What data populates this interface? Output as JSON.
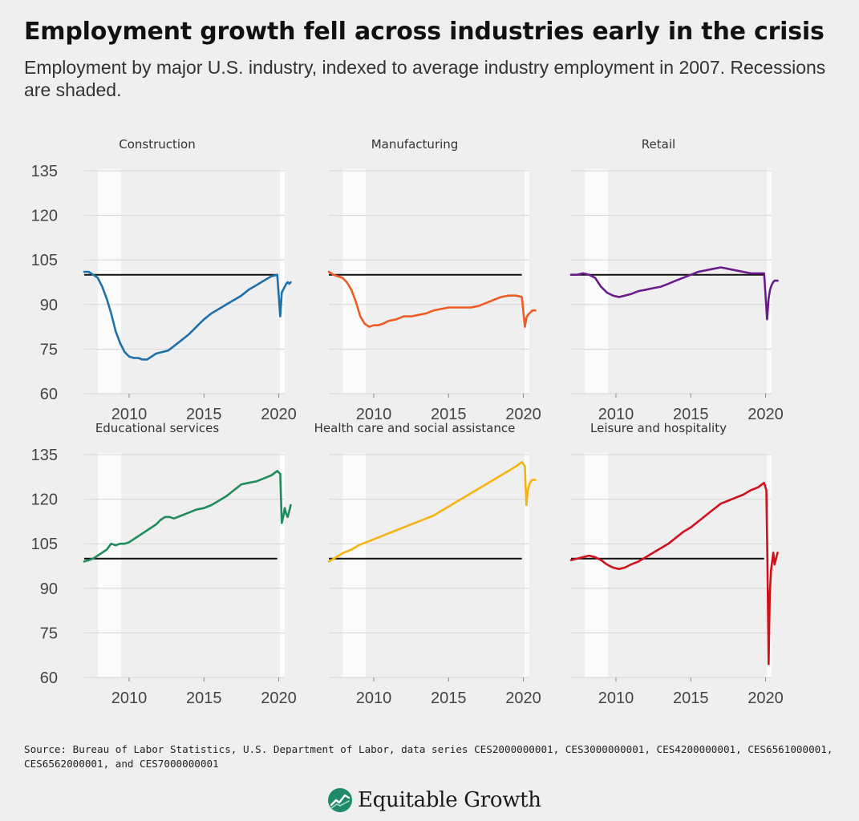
{
  "header": {
    "title": "Employment growth fell across industries early in the crisis",
    "subtitle": "Employment by major U.S. industry, indexed to average industry employment in 2007. Recessions are shaded."
  },
  "footer": {
    "source": "Source: Bureau of Labor Statistics, U.S. Department of Labor, data series CES2000000001, CES3000000001, CES4200000001, CES6561000001, CES6562000001, and CES7000000001",
    "logo_text": "Equitable Growth",
    "logo_icon": "equitable-growth-logo-icon"
  },
  "chart_data": {
    "type": "line",
    "layout": "small-multiples",
    "ylim": [
      60,
      135
    ],
    "y_ticks": [
      60,
      75,
      90,
      105,
      120,
      135
    ],
    "xlim": [
      2007,
      2020.4
    ],
    "x_ticks": [
      2010,
      2015,
      2020
    ],
    "reference_line": 100,
    "recessions": [
      [
        2007.92,
        2009.46
      ],
      [
        2020.08,
        2020.4
      ]
    ],
    "colors": {
      "reference": "#111111",
      "recession": "#fbfbfb",
      "grid": "#d6d6d6"
    },
    "panels": [
      {
        "name": "Construction",
        "color": "#1f6fa8",
        "x": [
          2007.0,
          2007.3,
          2007.6,
          2007.9,
          2008.2,
          2008.5,
          2008.8,
          2009.1,
          2009.4,
          2009.7,
          2010.0,
          2010.3,
          2010.6,
          2010.9,
          2011.2,
          2011.5,
          2011.8,
          2012.2,
          2012.6,
          2013.0,
          2013.5,
          2014.0,
          2014.5,
          2015.0,
          2015.5,
          2016.0,
          2016.5,
          2017.0,
          2017.5,
          2018.0,
          2018.5,
          2019.0,
          2019.5,
          2019.9,
          2020.1,
          2020.2,
          2020.3,
          2020.4,
          2020.5,
          2020.6,
          2020.7,
          2020.8
        ],
        "y": [
          101,
          101,
          100,
          99,
          96,
          92,
          87,
          81,
          77,
          74,
          72.5,
          72,
          72,
          71.5,
          71.5,
          72.5,
          73.5,
          74,
          74.5,
          76,
          78,
          80,
          82.5,
          85,
          87,
          88.5,
          90,
          91.5,
          93,
          95,
          96.5,
          98,
          99.5,
          100,
          86,
          94,
          95,
          96,
          97,
          97.5,
          97,
          97.5
        ]
      },
      {
        "name": "Manufacturing",
        "color": "#f05a23",
        "x": [
          2007.0,
          2007.3,
          2007.6,
          2007.9,
          2008.2,
          2008.5,
          2008.8,
          2009.1,
          2009.4,
          2009.7,
          2010.0,
          2010.3,
          2010.6,
          2011.0,
          2011.5,
          2012.0,
          2012.5,
          2013.0,
          2013.5,
          2014.0,
          2014.5,
          2015.0,
          2015.5,
          2016.0,
          2016.5,
          2017.0,
          2017.5,
          2018.0,
          2018.5,
          2019.0,
          2019.5,
          2019.9,
          2020.1,
          2020.2,
          2020.3,
          2020.4,
          2020.5,
          2020.6,
          2020.7,
          2020.8
        ],
        "y": [
          101,
          100,
          99.5,
          99,
          97.5,
          95,
          91,
          86,
          83.5,
          82.5,
          83,
          83,
          83.5,
          84.5,
          85,
          86,
          86,
          86.5,
          87,
          88,
          88.5,
          89,
          89,
          89,
          89,
          89.5,
          90.5,
          91.5,
          92.5,
          93,
          93,
          92.5,
          82.5,
          85.5,
          86.5,
          87,
          87.5,
          88,
          88,
          88
        ]
      },
      {
        "name": "Retail",
        "color": "#6a1d8a",
        "x": [
          2007.0,
          2007.4,
          2007.8,
          2008.2,
          2008.6,
          2009.0,
          2009.4,
          2009.8,
          2010.2,
          2010.6,
          2011.0,
          2011.5,
          2012.0,
          2012.5,
          2013.0,
          2013.5,
          2014.0,
          2014.5,
          2015.0,
          2015.5,
          2016.0,
          2016.5,
          2017.0,
          2017.5,
          2018.0,
          2018.5,
          2019.0,
          2019.5,
          2019.9,
          2020.1,
          2020.2,
          2020.3,
          2020.4,
          2020.5,
          2020.6,
          2020.7,
          2020.8
        ],
        "y": [
          100,
          100,
          100.5,
          100,
          99,
          96,
          94,
          93,
          92.5,
          93,
          93.5,
          94.5,
          95,
          95.5,
          96,
          97,
          98,
          99,
          100,
          101,
          101.5,
          102,
          102.5,
          102,
          101.5,
          101,
          100.5,
          100.5,
          100.5,
          85,
          92,
          95,
          96.5,
          97.5,
          98,
          98,
          98
        ]
      },
      {
        "name": "Educational services",
        "color": "#1f8a5a",
        "x": [
          2007.0,
          2007.3,
          2007.6,
          2007.9,
          2008.2,
          2008.5,
          2008.8,
          2009.1,
          2009.4,
          2009.7,
          2010.0,
          2010.3,
          2010.6,
          2010.9,
          2011.2,
          2011.5,
          2011.8,
          2012.1,
          2012.4,
          2012.7,
          2013.0,
          2013.5,
          2014.0,
          2014.5,
          2015.0,
          2015.5,
          2016.0,
          2016.5,
          2017.0,
          2017.5,
          2018.0,
          2018.5,
          2019.0,
          2019.5,
          2019.9,
          2020.1,
          2020.2,
          2020.3,
          2020.4,
          2020.5,
          2020.6,
          2020.7,
          2020.8
        ],
        "y": [
          99,
          99.5,
          100,
          101,
          102,
          103,
          105,
          104.5,
          105,
          105,
          105.5,
          106.5,
          107.5,
          108.5,
          109.5,
          110.5,
          111.5,
          113,
          114,
          114,
          113.5,
          114.5,
          115.5,
          116.5,
          117,
          118,
          119.5,
          121,
          123,
          125,
          125.5,
          126,
          127,
          128,
          129.5,
          128.5,
          112,
          114,
          117,
          115,
          114,
          116,
          118
        ]
      },
      {
        "name": "Health care and social assistance",
        "color": "#f5b311",
        "x": [
          2007.0,
          2007.5,
          2008.0,
          2008.5,
          2009.0,
          2009.5,
          2010.0,
          2010.5,
          2011.0,
          2011.5,
          2012.0,
          2012.5,
          2013.0,
          2013.5,
          2014.0,
          2014.5,
          2015.0,
          2015.5,
          2016.0,
          2016.5,
          2017.0,
          2017.5,
          2018.0,
          2018.5,
          2019.0,
          2019.5,
          2019.9,
          2020.1,
          2020.2,
          2020.3,
          2020.4,
          2020.5,
          2020.6,
          2020.7,
          2020.8
        ],
        "y": [
          99,
          100.5,
          102,
          103,
          104.5,
          105.5,
          106.5,
          107.5,
          108.5,
          109.5,
          110.5,
          111.5,
          112.5,
          113.5,
          114.5,
          116,
          117.5,
          119,
          120.5,
          122,
          123.5,
          125,
          126.5,
          128,
          129.5,
          131,
          132.5,
          131,
          118,
          123,
          125,
          126,
          126.5,
          126.5,
          126.5
        ]
      },
      {
        "name": "Leisure and hospitality",
        "color": "#d0111b",
        "x": [
          2007.0,
          2007.4,
          2007.8,
          2008.2,
          2008.6,
          2009.0,
          2009.4,
          2009.8,
          2010.2,
          2010.6,
          2011.0,
          2011.5,
          2012.0,
          2012.5,
          2013.0,
          2013.5,
          2014.0,
          2014.5,
          2015.0,
          2015.5,
          2016.0,
          2016.5,
          2017.0,
          2017.5,
          2018.0,
          2018.5,
          2019.0,
          2019.5,
          2019.9,
          2020.05,
          2020.12,
          2020.2,
          2020.28,
          2020.36,
          2020.44,
          2020.52,
          2020.6,
          2020.7,
          2020.8
        ],
        "y": [
          99.5,
          100,
          100.5,
          101,
          100.5,
          99.5,
          98,
          97,
          96.5,
          97,
          98,
          99,
          100.5,
          102,
          103.5,
          105,
          107,
          109,
          110.5,
          112.5,
          114.5,
          116.5,
          118.5,
          119.5,
          120.5,
          121.5,
          123,
          124,
          125.5,
          123,
          100,
          64.5,
          88,
          96,
          99,
          102,
          98,
          100,
          102
        ]
      }
    ]
  }
}
